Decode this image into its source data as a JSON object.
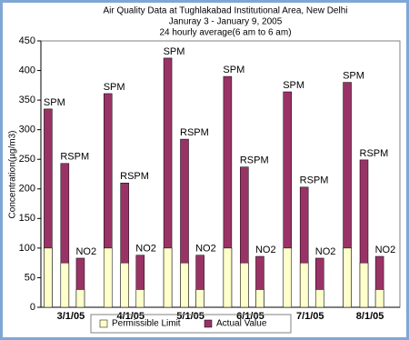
{
  "chart_data": {
    "type": "bar",
    "title": [
      "Air Quality Data at Tughlakabad Institutional Area, New Delhi",
      "Januray 3 - January 9, 2005",
      "24 hourly average(6 am to 6 am)"
    ],
    "y_label": "Concentration(µg/m3)",
    "categories": [
      "3/1/05",
      "4/1/05",
      "5/1/05",
      "6/1/05",
      "7/1/05",
      "8/1/05"
    ],
    "pollutants": [
      "SPM",
      "RSPM",
      "NO2"
    ],
    "series": [
      {
        "name": "Permissible Limit",
        "color": "#ffffcc",
        "values": [
          [
            100,
            75,
            30
          ],
          [
            100,
            75,
            30
          ],
          [
            100,
            75,
            30
          ],
          [
            100,
            75,
            30
          ],
          [
            100,
            75,
            30
          ],
          [
            100,
            75,
            30
          ]
        ]
      },
      {
        "name": "Actual Value",
        "color": "#993366",
        "values": [
          [
            335,
            243,
            83
          ],
          [
            361,
            210,
            88
          ],
          [
            421,
            284,
            88
          ],
          [
            390,
            237,
            86
          ],
          [
            364,
            203,
            83
          ],
          [
            380,
            249,
            86
          ]
        ]
      }
    ],
    "ylim": [
      0,
      450
    ],
    "yticks": [
      0,
      50,
      100,
      150,
      200,
      250,
      300,
      350,
      400,
      450
    ],
    "grid": false
  }
}
